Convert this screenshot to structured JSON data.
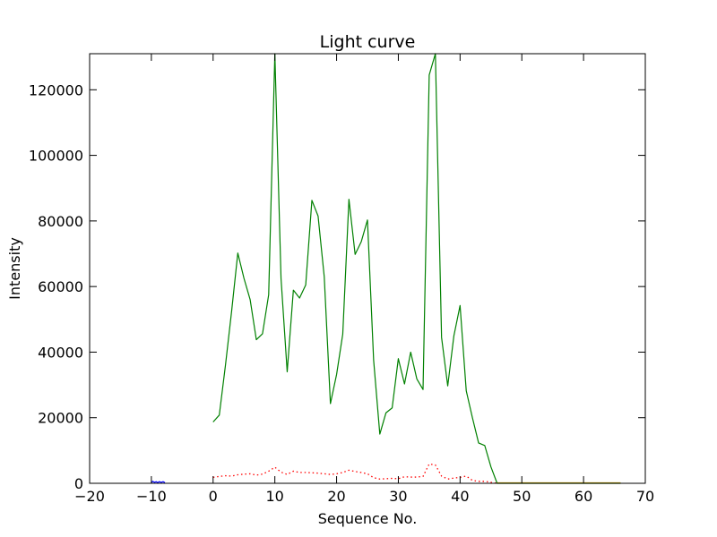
{
  "chart_data": {
    "type": "line",
    "title": "Light curve",
    "xlabel": "Sequence No.",
    "ylabel": "Intensity",
    "xlim": [
      -20,
      70
    ],
    "ylim": [
      0,
      131000
    ],
    "xticks": [
      -20,
      -10,
      0,
      10,
      20,
      30,
      40,
      50,
      60,
      70
    ],
    "yticks": [
      0,
      20000,
      40000,
      60000,
      80000,
      100000,
      120000
    ],
    "grid": false,
    "series": [
      {
        "color": "#008000",
        "style": "solid",
        "x": [
          0,
          1,
          2,
          3,
          4,
          5,
          6,
          7,
          8,
          9,
          10,
          11,
          12,
          13,
          14,
          15,
          16,
          17,
          18,
          19,
          20,
          21,
          22,
          23,
          24,
          25,
          26,
          27,
          28,
          29,
          30,
          31,
          32,
          33,
          34,
          35,
          36,
          37,
          38,
          39,
          40,
          41,
          42,
          43,
          44,
          45,
          46,
          47,
          48,
          49,
          50,
          51,
          52,
          53,
          54,
          55,
          56,
          57,
          58,
          59,
          60,
          61,
          62,
          63,
          64,
          65,
          66
        ],
        "y": [
          18700,
          20800,
          36000,
          52500,
          70200,
          62500,
          56000,
          43800,
          45600,
          57500,
          131000,
          62500,
          34000,
          58900,
          56500,
          60500,
          86300,
          81500,
          63000,
          24300,
          33200,
          45500,
          86600,
          69800,
          73700,
          80300,
          37500,
          15000,
          21500,
          23000,
          38000,
          30300,
          40000,
          31800,
          28600,
          124500,
          131000,
          44500,
          29700,
          45000,
          54200,
          28200,
          20000,
          12300,
          11500,
          5000,
          0,
          0,
          0,
          0,
          0,
          0,
          0,
          0,
          0,
          0,
          0,
          0,
          0,
          0,
          0,
          0,
          0,
          0,
          0,
          0,
          0
        ]
      },
      {
        "color": "#ff0000",
        "style": "dotted",
        "x": [
          0,
          1,
          2,
          3,
          4,
          5,
          6,
          7,
          8,
          9,
          10,
          11,
          12,
          13,
          14,
          15,
          16,
          17,
          18,
          19,
          20,
          21,
          22,
          23,
          24,
          25,
          26,
          27,
          28,
          29,
          30,
          31,
          32,
          33,
          34,
          35,
          36,
          37,
          38,
          39,
          40,
          41,
          42,
          43,
          44,
          45,
          46
        ],
        "y": [
          1800,
          2100,
          2300,
          2200,
          2600,
          2800,
          2900,
          2500,
          2800,
          3700,
          4900,
          3400,
          2700,
          3700,
          3300,
          3300,
          3200,
          3100,
          2900,
          2700,
          2900,
          3300,
          4000,
          3600,
          3300,
          2900,
          1700,
          1300,
          1400,
          1500,
          1400,
          2000,
          1900,
          1900,
          2100,
          5900,
          5600,
          2200,
          1300,
          1600,
          1800,
          2200,
          900,
          600,
          600,
          300,
          0
        ]
      },
      {
        "color": "#0000ff",
        "style": "solid",
        "x": [
          -10,
          -9.8,
          -9.5,
          -9.2,
          -9,
          -8.7,
          -8.4,
          -8.1,
          -7.8
        ],
        "y": [
          200,
          600,
          300,
          500,
          200,
          500,
          300,
          500,
          200
        ]
      },
      {
        "color": "#bf9f00",
        "style": "solid",
        "x": [
          46,
          66
        ],
        "y": [
          150,
          150
        ]
      }
    ]
  }
}
